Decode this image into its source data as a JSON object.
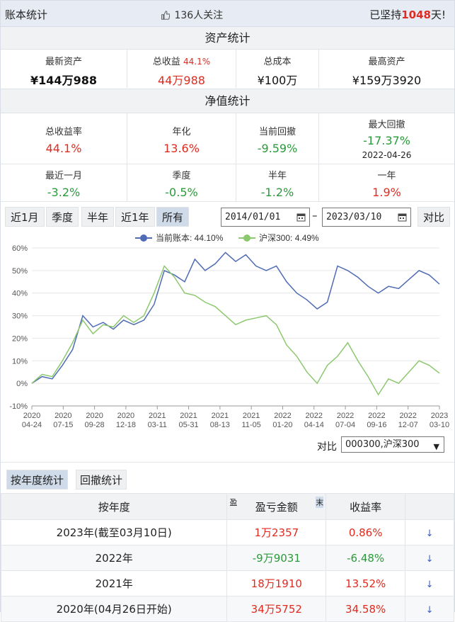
{
  "header": {
    "title": "账本统计",
    "followers": "136人关注",
    "persist_prefix": "已坚持",
    "persist_days": "1048",
    "persist_suffix": "天!"
  },
  "asset_stats": {
    "section_title": "资产统计",
    "latest_asset": {
      "label": "最新资产",
      "value": "¥144万988"
    },
    "total_profit": {
      "label": "总收益",
      "pct": "44.1%",
      "value": "44万988"
    },
    "total_cost": {
      "label": "总成本",
      "value": "¥100万"
    },
    "max_asset": {
      "label": "最高资产",
      "value": "¥159万3920"
    }
  },
  "nav_stats": {
    "section_title": "净值统计",
    "row1": [
      {
        "label": "总收益率",
        "value": "44.1%"
      },
      {
        "label": "年化",
        "value": "13.6%"
      },
      {
        "label": "当前回撤",
        "value": "-9.59%"
      },
      {
        "label": "最大回撤",
        "value": "-17.37%",
        "date": "2022-04-26"
      }
    ],
    "row2": [
      {
        "label": "最近一月",
        "value": "-3.2%"
      },
      {
        "label": "季度",
        "value": "-0.5%"
      },
      {
        "label": "半年",
        "value": "-1.2%"
      },
      {
        "label": "一年",
        "value": "1.9%"
      }
    ]
  },
  "range_buttons": [
    "近1月",
    "季度",
    "半年",
    "近1年",
    "所有"
  ],
  "active_range": "所有",
  "date_from": "2014/01/01",
  "date_to": "2023/03/10",
  "compare_button": "对比",
  "compare_label": "对比",
  "compare_select": "000300,沪深300",
  "colors": {
    "account": "#4f6bb5",
    "index": "#8cc86e",
    "red": "#e02b20",
    "green": "#2a9a3a"
  },
  "tabs": [
    "按年度统计",
    "回撤统计"
  ],
  "year_table": {
    "headers": [
      "按年度",
      "盈亏金额",
      "收益率"
    ],
    "header_marks": [
      "盈",
      "末"
    ],
    "rows": [
      {
        "year": "2023年(截至03月10日)",
        "amount": "1万2357",
        "rate": "0.86%"
      },
      {
        "year": "2022年",
        "amount": "-9万9031",
        "rate": "-6.48%"
      },
      {
        "year": "2021年",
        "amount": "18万1910",
        "rate": "13.52%"
      },
      {
        "year": "2020年(04月26日开始)",
        "amount": "34万5752",
        "rate": "34.58%"
      }
    ]
  },
  "chart_data": {
    "type": "line",
    "legend": "top-center",
    "ylim": [
      -10,
      60
    ],
    "y_ticks": [
      "60%",
      "50%",
      "40%",
      "30%",
      "20%",
      "10%",
      "0%",
      "-10%"
    ],
    "x_ticks": [
      [
        "2020",
        "04-24"
      ],
      [
        "2020",
        "07-15"
      ],
      [
        "2020",
        "09-28"
      ],
      [
        "2020",
        "12-18"
      ],
      [
        "2021",
        "03-11"
      ],
      [
        "2021",
        "05-31"
      ],
      [
        "2021",
        "08-13"
      ],
      [
        "2021",
        "11-05"
      ],
      [
        "2022",
        "01-20"
      ],
      [
        "2022",
        "04-14"
      ],
      [
        "2022",
        "07-04"
      ],
      [
        "2022",
        "09-16"
      ],
      [
        "2022",
        "12-07"
      ],
      [
        "2023",
        "03-10"
      ]
    ],
    "series": [
      {
        "name": "当前账本: 44.10%",
        "values": [
          0,
          3,
          2,
          8,
          15,
          30,
          25,
          27,
          24,
          28,
          26,
          28,
          35,
          50,
          48,
          45,
          55,
          50,
          53,
          58,
          54,
          57,
          52,
          50,
          52,
          45,
          40,
          37,
          33,
          36,
          52,
          50,
          47,
          43,
          40,
          43,
          42,
          46,
          50,
          48,
          44
        ]
      },
      {
        "name": "沪深300: 4.49%",
        "values": [
          0,
          4,
          3,
          10,
          18,
          28,
          22,
          26,
          25,
          30,
          27,
          30,
          40,
          52,
          47,
          40,
          39,
          36,
          34,
          30,
          26,
          28,
          29,
          30,
          26,
          17,
          12,
          5,
          0,
          8,
          12,
          18,
          10,
          3,
          -5,
          2,
          0,
          5,
          10,
          8,
          4.5
        ]
      }
    ]
  }
}
